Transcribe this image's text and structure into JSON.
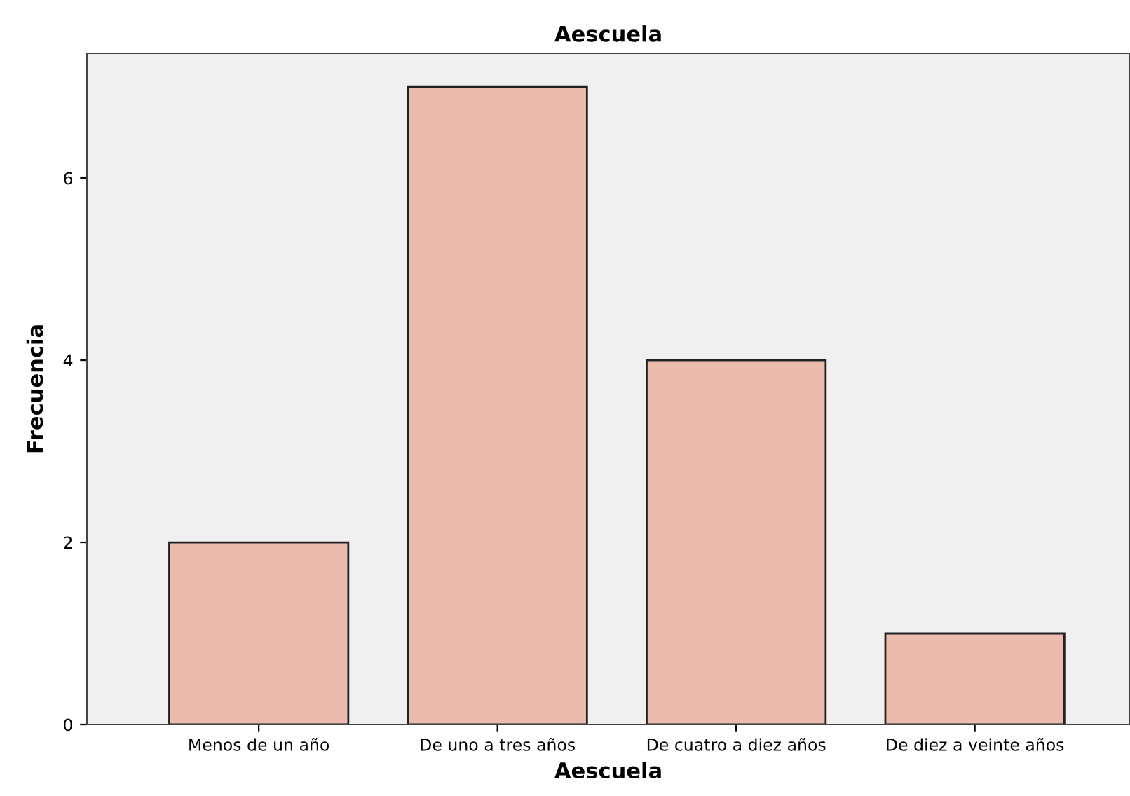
{
  "chart_data": {
    "type": "bar",
    "title": "Aescuela",
    "xlabel": "Aescuela",
    "ylabel": "Frecuencia",
    "categories": [
      "Menos de un año",
      "De uno a tres años",
      "De cuatro a diez años",
      "De diez a veinte años"
    ],
    "values": [
      2,
      7,
      4,
      1
    ],
    "color": "#ebbcae",
    "ylim": [
      0,
      7.37
    ],
    "yticks": [
      0,
      2,
      4,
      6
    ],
    "grid": false,
    "legend": false
  }
}
